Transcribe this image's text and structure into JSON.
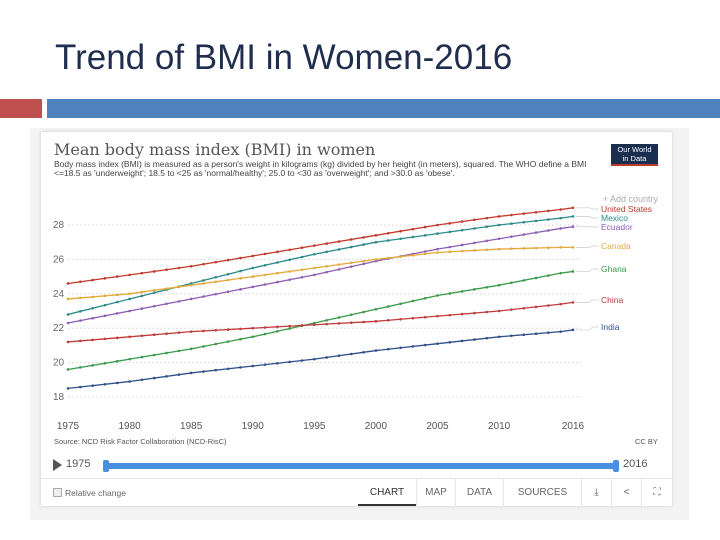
{
  "slide": {
    "title": "Trend of BMI in Women-2016"
  },
  "card": {
    "title": "Mean body mass index (BMI) in women",
    "subtitle": "Body mass index (BMI) is measured as a person's weight in kilograms (kg) divided by her height (in meters), squared. The WHO define a BMI <=18.5 as 'underweight'; 18.5 to <25 as 'normal/healthy'; 25.0 to <30 as 'overweight'; and >30.0 as 'obese'.",
    "logo": "Our World in Data",
    "add_country": "+ Add country",
    "source": "Source: NCD Risk Factor Collaboration (NCD-RisC)",
    "license": "CC BY",
    "timeline": {
      "start": "1975",
      "end": "2016"
    },
    "relative_change": "Relative change",
    "tabs": [
      "CHART",
      "MAP",
      "DATA",
      "SOURCES"
    ],
    "active_tab": "CHART",
    "icons": [
      "download-icon",
      "share-icon",
      "fullscreen-icon"
    ]
  },
  "chart_data": {
    "type": "line",
    "title": "Mean body mass index (BMI) in women",
    "x": [
      1975,
      1980,
      1985,
      1990,
      1995,
      2000,
      2005,
      2010,
      2015,
      2016
    ],
    "x_ticks": [
      "1975",
      "1980",
      "1985",
      "1990",
      "1995",
      "2000",
      "2005",
      "2010",
      "2016"
    ],
    "y_ticks": [
      "18",
      "20",
      "22",
      "24",
      "26",
      "28"
    ],
    "ylim": [
      18,
      29.5
    ],
    "xlim": [
      1975,
      2016
    ],
    "grid": "horizontal dotted",
    "legend": "right, labels at line ends",
    "series": [
      {
        "name": "United States",
        "color": "#c0392b",
        "values": [
          24.6,
          25.1,
          25.6,
          26.2,
          26.8,
          27.4,
          28.0,
          28.5,
          28.9,
          29.0
        ]
      },
      {
        "name": "Mexico",
        "color": "#2a8a8a",
        "values": [
          22.8,
          23.7,
          24.6,
          25.5,
          26.3,
          27.0,
          27.5,
          28.0,
          28.4,
          28.5
        ]
      },
      {
        "name": "Ecuador",
        "color": "#8e5db5",
        "values": [
          22.3,
          23.0,
          23.7,
          24.4,
          25.1,
          25.9,
          26.6,
          27.2,
          27.8,
          27.9
        ]
      },
      {
        "name": "Canada",
        "color": "#e3a93b",
        "values": [
          23.7,
          24.0,
          24.5,
          25.0,
          25.5,
          26.0,
          26.4,
          26.6,
          26.7,
          26.7
        ]
      },
      {
        "name": "Ghana",
        "color": "#3a9a4a",
        "values": [
          19.6,
          20.2,
          20.8,
          21.5,
          22.3,
          23.1,
          23.9,
          24.5,
          25.2,
          25.3
        ]
      },
      {
        "name": "China",
        "color": "#c03a3a",
        "values": [
          21.2,
          21.5,
          21.8,
          22.0,
          22.2,
          22.4,
          22.7,
          23.0,
          23.4,
          23.5
        ]
      },
      {
        "name": "India",
        "color": "#2e4f8a",
        "values": [
          18.5,
          18.9,
          19.4,
          19.8,
          20.2,
          20.7,
          21.1,
          21.5,
          21.8,
          21.9
        ]
      }
    ]
  }
}
